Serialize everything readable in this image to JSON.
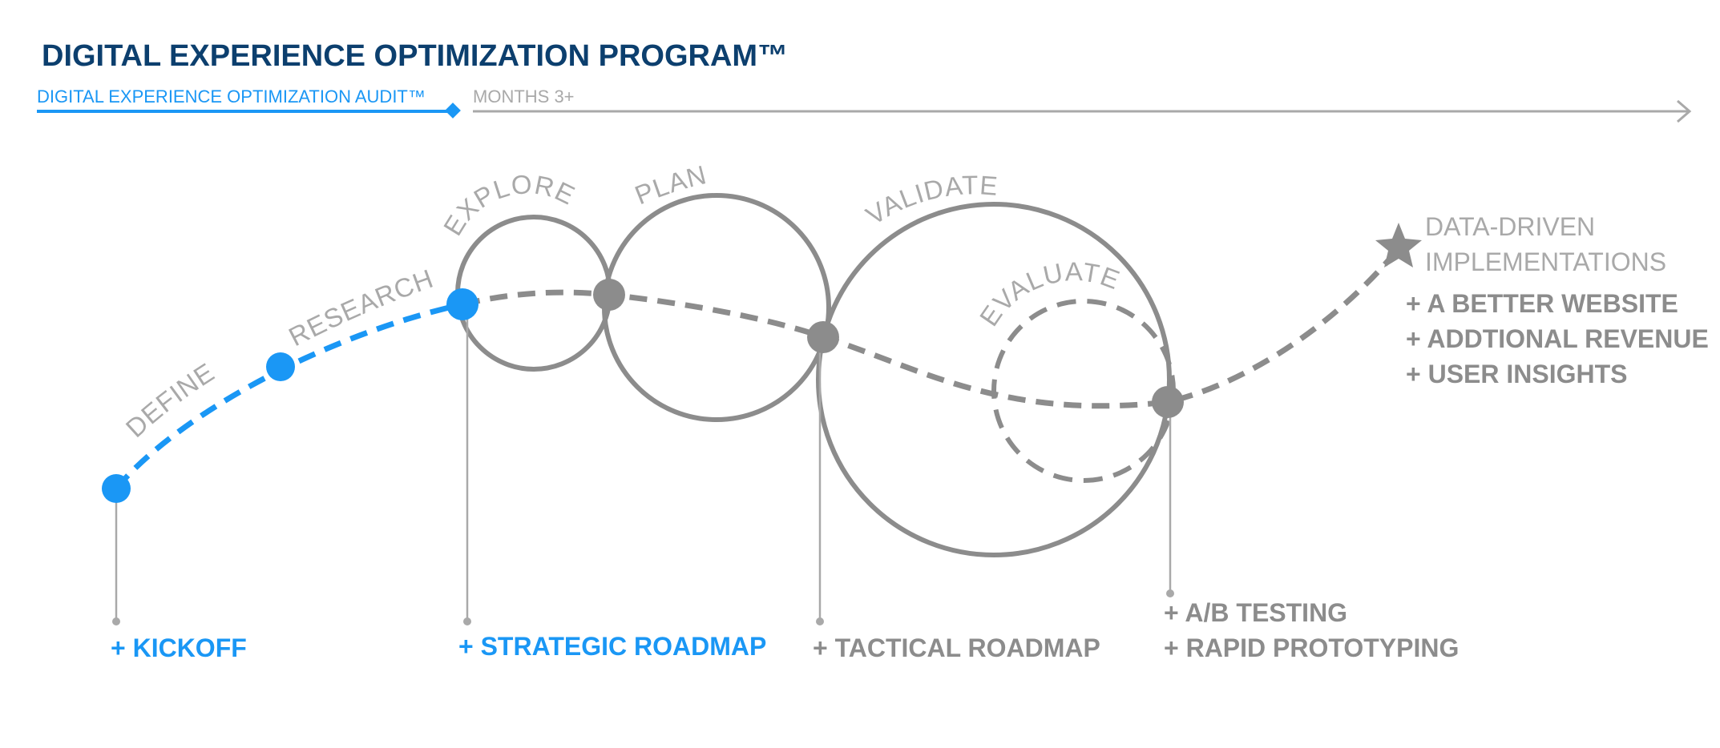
{
  "colors": {
    "navy": "#0c3f6e",
    "blue": "#1a97f5",
    "gray": "#8c8c8c",
    "light_gray": "#a9a9a9"
  },
  "program_title": "DIGITAL EXPERIENCE OPTIMIZATION PROGRAM™",
  "timeline": {
    "audit_label": "DIGITAL EXPERIENCE OPTIMIZATION AUDIT™",
    "months_label": "MONTHS 3+"
  },
  "phases": {
    "define": "DEFINE",
    "research": "RESEARCH",
    "explore": "EXPLORE",
    "plan": "PLAN",
    "validate": "VALIDATE",
    "evaluate": "EVALUATE"
  },
  "deliverables": {
    "kickoff": "+ KICKOFF",
    "strategic_roadmap": "+ STRATEGIC ROADMAP",
    "tactical_roadmap": "+ TACTICAL ROADMAP",
    "ab_testing": "+ A/B TESTING",
    "rapid_prototyping": "+ RAPID PROTOTYPING"
  },
  "results": {
    "heading_line1": "DATA-DRIVEN",
    "heading_line2": "IMPLEMENTATIONS",
    "items": [
      "+ A BETTER WEBSITE",
      "+ ADDTIONAL REVENUE",
      "+ USER INSIGHTS"
    ]
  },
  "icons": {
    "goal": "star-icon",
    "milestone": "diamond-marker-icon",
    "arrow": "arrow-right-icon"
  }
}
